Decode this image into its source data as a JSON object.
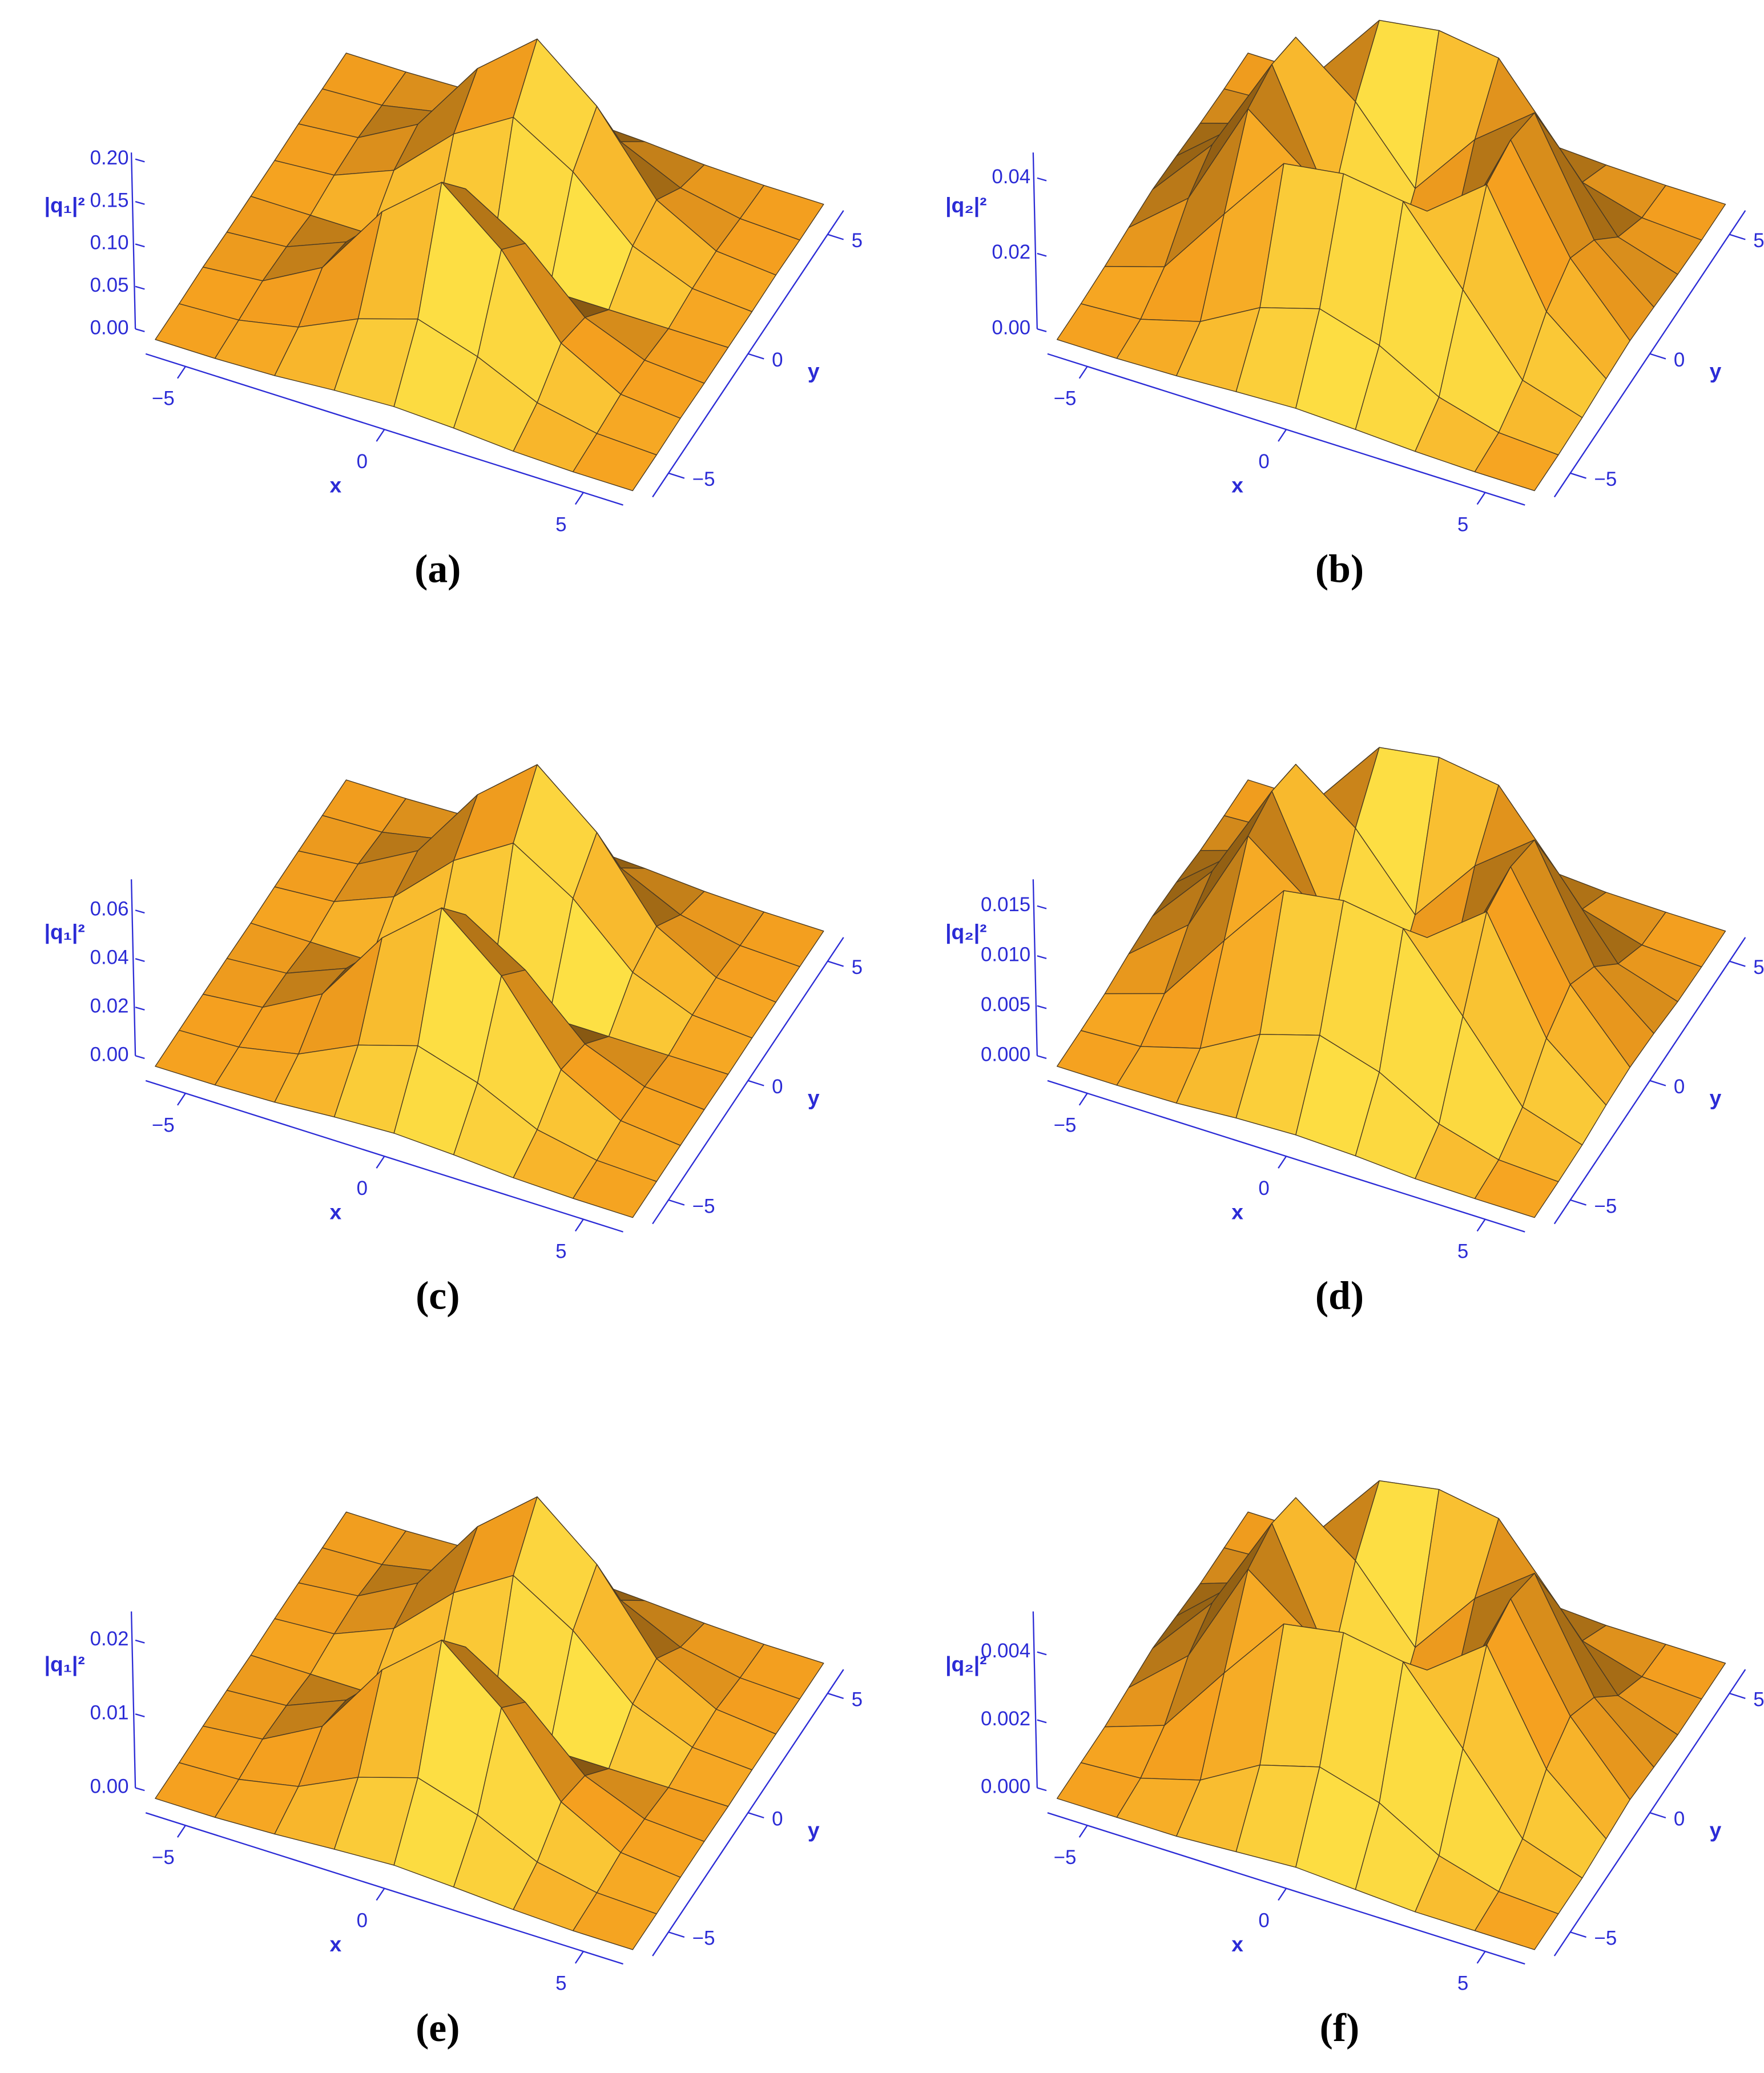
{
  "chart_data": [
    {
      "type": "surface",
      "caption": "(a)",
      "xlabel": "x",
      "ylabel": "y",
      "zlabel": "|q₁|²",
      "color": "#f5a01f",
      "axis_color": "#2b2bd6",
      "xlim": [
        -6,
        6
      ],
      "ylim": [
        -6,
        6
      ],
      "zlim": [
        0,
        0.2
      ],
      "xticks": [
        {
          "value": -5,
          "label": "−5"
        },
        0,
        5
      ],
      "yticks": [
        {
          "value": -5,
          "label": "−5"
        },
        0,
        5
      ],
      "zticks": [
        {
          "value": 0,
          "label": "0.00"
        },
        {
          "value": 0.05,
          "label": "0.05"
        },
        {
          "value": 0.1,
          "label": "0.10"
        },
        {
          "value": 0.15,
          "label": "0.15"
        },
        {
          "value": 0.2,
          "label": "0.20"
        }
      ],
      "x": [
        -6,
        -4.5,
        -3,
        -1.5,
        0,
        1.5,
        3,
        4.5,
        6
      ],
      "y": [
        -6,
        -4.5,
        -3,
        -1.5,
        0,
        1.5,
        3,
        4.5,
        6
      ],
      "z": [
        [
          0,
          0,
          0.002,
          0.007,
          0.01,
          0.007,
          0.002,
          0,
          0
        ],
        [
          0,
          0.003,
          0.017,
          0.049,
          0.071,
          0.049,
          0.017,
          0.003,
          0
        ],
        [
          0.001,
          0.007,
          0.045,
          0.133,
          0.19,
          0.133,
          0.045,
          0.007,
          0.001
        ],
        [
          0,
          0.005,
          0.033,
          0.098,
          0.14,
          0.098,
          0.033,
          0.005,
          0
        ],
        [
          0,
          0,
          0,
          0,
          0,
          0,
          0,
          0,
          0
        ],
        [
          0,
          0.005,
          0.033,
          0.098,
          0.14,
          0.098,
          0.033,
          0.005,
          0
        ],
        [
          0.001,
          0.007,
          0.045,
          0.133,
          0.19,
          0.133,
          0.045,
          0.007,
          0.001
        ],
        [
          0,
          0.003,
          0.017,
          0.049,
          0.071,
          0.049,
          0.017,
          0.003,
          0
        ],
        [
          0,
          0,
          0.002,
          0.007,
          0.01,
          0.007,
          0.002,
          0,
          0
        ]
      ]
    },
    {
      "type": "surface",
      "caption": "(b)",
      "xlabel": "x",
      "ylabel": "y",
      "zlabel": "|q₂|²",
      "color": "#f5a01f",
      "axis_color": "#2b2bd6",
      "xlim": [
        -6,
        6
      ],
      "ylim": [
        -6,
        6
      ],
      "zlim": [
        0,
        0.045
      ],
      "xticks": [
        {
          "value": -5,
          "label": "−5"
        },
        0,
        5
      ],
      "yticks": [
        {
          "value": -5,
          "label": "−5"
        },
        0,
        5
      ],
      "zticks": [
        {
          "value": 0,
          "label": "0.00"
        },
        {
          "value": 0.02,
          "label": "0.02"
        },
        {
          "value": 0.04,
          "label": "0.04"
        }
      ],
      "x": [
        -6,
        -4.5,
        -3,
        -1.5,
        0,
        1.5,
        3,
        4.5,
        6
      ],
      "y": [
        -6,
        -4.5,
        -3,
        -1.5,
        0,
        1.5,
        3,
        4.5,
        6
      ],
      "z": [
        [
          0,
          0,
          0.0004,
          0.0012,
          0.0018,
          0.0012,
          0.0004,
          0,
          0
        ],
        [
          0,
          0.0009,
          0.0053,
          0.014,
          0.0187,
          0.014,
          0.0053,
          0.0009,
          0
        ],
        [
          0.0004,
          0.0053,
          0.0243,
          0.0427,
          0.045,
          0.0427,
          0.0243,
          0.0053,
          0.0004
        ],
        [
          0.0012,
          0.014,
          0.0427,
          0.0306,
          0.0126,
          0.0306,
          0.0427,
          0.014,
          0.0012
        ],
        [
          0.0018,
          0.0187,
          0.045,
          0.0126,
          0,
          0.0126,
          0.045,
          0.0187,
          0.0018
        ],
        [
          0.0012,
          0.014,
          0.0427,
          0.0306,
          0.0126,
          0.0306,
          0.0427,
          0.014,
          0.0012
        ],
        [
          0.0004,
          0.0053,
          0.0243,
          0.0427,
          0.045,
          0.0427,
          0.0243,
          0.0053,
          0.0004
        ],
        [
          0,
          0.0009,
          0.0053,
          0.014,
          0.0187,
          0.014,
          0.0053,
          0.0009,
          0
        ],
        [
          0,
          0,
          0.0004,
          0.0012,
          0.0018,
          0.0012,
          0.0004,
          0,
          0
        ]
      ]
    },
    {
      "type": "surface",
      "caption": "(c)",
      "xlabel": "x",
      "ylabel": "y",
      "zlabel": "|q₁|²",
      "color": "#f5a01f",
      "axis_color": "#2b2bd6",
      "xlim": [
        -6,
        6
      ],
      "ylim": [
        -6,
        6
      ],
      "zlim": [
        0,
        0.07
      ],
      "xticks": [
        {
          "value": -5,
          "label": "−5"
        },
        0,
        5
      ],
      "yticks": [
        {
          "value": -5,
          "label": "−5"
        },
        0,
        5
      ],
      "zticks": [
        {
          "value": 0,
          "label": "0.00"
        },
        {
          "value": 0.02,
          "label": "0.02"
        },
        {
          "value": 0.04,
          "label": "0.04"
        },
        {
          "value": 0.06,
          "label": "0.06"
        }
      ],
      "x": [
        -6,
        -4.5,
        -3,
        -1.5,
        0,
        1.5,
        3,
        4.5,
        6
      ],
      "y": [
        -6,
        -4.5,
        -3,
        -1.5,
        0,
        1.5,
        3,
        4.5,
        6
      ],
      "z": [
        [
          0,
          0.0001,
          0.0008,
          0.0025,
          0.0036,
          0.0025,
          0.0008,
          0.0001,
          0
        ],
        [
          0.0001,
          0.001,
          0.0059,
          0.0174,
          0.0249,
          0.0174,
          0.0059,
          0.001,
          0.0001
        ],
        [
          0.0002,
          0.0026,
          0.0159,
          0.0468,
          0.067,
          0.0468,
          0.0159,
          0.0026,
          0.0002
        ],
        [
          0.0002,
          0.0019,
          0.0117,
          0.0344,
          0.0494,
          0.0344,
          0.0117,
          0.0019,
          0.0002
        ],
        [
          0,
          0,
          0,
          0,
          0,
          0,
          0,
          0,
          0
        ],
        [
          0.0002,
          0.0019,
          0.0117,
          0.0344,
          0.0494,
          0.0344,
          0.0117,
          0.0019,
          0.0002
        ],
        [
          0.0002,
          0.0026,
          0.0159,
          0.0468,
          0.067,
          0.0468,
          0.0159,
          0.0026,
          0.0002
        ],
        [
          0.0001,
          0.001,
          0.0059,
          0.0174,
          0.0249,
          0.0174,
          0.0059,
          0.001,
          0.0001
        ],
        [
          0,
          0.0001,
          0.0008,
          0.0025,
          0.0036,
          0.0025,
          0.0008,
          0.0001,
          0
        ]
      ]
    },
    {
      "type": "surface",
      "caption": "(d)",
      "xlabel": "x",
      "ylabel": "y",
      "zlabel": "|q₂|²",
      "color": "#f5a01f",
      "axis_color": "#2b2bd6",
      "xlim": [
        -6,
        6
      ],
      "ylim": [
        -6,
        6
      ],
      "zlim": [
        0,
        0.017
      ],
      "xticks": [
        {
          "value": -5,
          "label": "−5"
        },
        0,
        5
      ],
      "yticks": [
        {
          "value": -5,
          "label": "−5"
        },
        0,
        5
      ],
      "zticks": [
        {
          "value": 0,
          "label": "0.000"
        },
        {
          "value": 0.005,
          "label": "0.005"
        },
        {
          "value": 0.01,
          "label": "0.010"
        },
        {
          "value": 0.015,
          "label": "0.015"
        }
      ],
      "x": [
        -6,
        -4.5,
        -3,
        -1.5,
        0,
        1.5,
        3,
        4.5,
        6
      ],
      "y": [
        -6,
        -4.5,
        -3,
        -1.5,
        0,
        1.5,
        3,
        4.5,
        6
      ],
      "z": [
        [
          0,
          0,
          0.0001,
          0.0005,
          0.0007,
          0.0005,
          0.0001,
          0,
          0
        ],
        [
          0,
          0.0003,
          0.002,
          0.0053,
          0.0071,
          0.0053,
          0.002,
          0.0003,
          0
        ],
        [
          0.0001,
          0.002,
          0.0092,
          0.0161,
          0.017,
          0.0161,
          0.0092,
          0.002,
          0.0001
        ],
        [
          0.0005,
          0.0053,
          0.0161,
          0.0116,
          0.0048,
          0.0116,
          0.0161,
          0.0053,
          0.0005
        ],
        [
          0.0007,
          0.0071,
          0.017,
          0.0048,
          0,
          0.0048,
          0.017,
          0.0071,
          0.0007
        ],
        [
          0.0005,
          0.0053,
          0.0161,
          0.0116,
          0.0048,
          0.0116,
          0.0161,
          0.0053,
          0.0005
        ],
        [
          0.0001,
          0.002,
          0.0092,
          0.0161,
          0.017,
          0.0161,
          0.0092,
          0.002,
          0.0001
        ],
        [
          0,
          0.0003,
          0.002,
          0.0053,
          0.0071,
          0.0053,
          0.002,
          0.0003,
          0
        ],
        [
          0,
          0,
          0.0001,
          0.0005,
          0.0007,
          0.0005,
          0.0001,
          0,
          0
        ]
      ]
    },
    {
      "type": "surface",
      "caption": "(e)",
      "xlabel": "x",
      "ylabel": "y",
      "zlabel": "|q₁|²",
      "color": "#f5a01f",
      "axis_color": "#2b2bd6",
      "xlim": [
        -6,
        6
      ],
      "ylim": [
        -6,
        6
      ],
      "zlim": [
        0,
        0.023
      ],
      "xticks": [
        {
          "value": -5,
          "label": "−5"
        },
        0,
        5
      ],
      "yticks": [
        {
          "value": -5,
          "label": "−5"
        },
        0,
        5
      ],
      "zticks": [
        {
          "value": 0,
          "label": "0.00"
        },
        {
          "value": 0.01,
          "label": "0.01"
        },
        {
          "value": 0.02,
          "label": "0.02"
        }
      ],
      "x": [
        -6,
        -4.5,
        -3,
        -1.5,
        0,
        1.5,
        3,
        4.5,
        6
      ],
      "y": [
        -6,
        -4.5,
        -3,
        -1.5,
        0,
        1.5,
        3,
        4.5,
        6
      ],
      "z": [
        [
          0,
          0,
          0.0003,
          0.0008,
          0.0012,
          0.0008,
          0.0003,
          0,
          0
        ],
        [
          0,
          0.0003,
          0.0019,
          0.0057,
          0.0082,
          0.0057,
          0.0019,
          0.0003,
          0
        ],
        [
          0.0001,
          0.0009,
          0.0052,
          0.0154,
          0.022,
          0.0154,
          0.0052,
          0.0009,
          0.0001
        ],
        [
          0.0001,
          0.0006,
          0.0039,
          0.0113,
          0.0162,
          0.0113,
          0.0039,
          0.0006,
          0.0001
        ],
        [
          0,
          0,
          0,
          0,
          0,
          0,
          0,
          0,
          0
        ],
        [
          0.0001,
          0.0006,
          0.0039,
          0.0113,
          0.0162,
          0.0113,
          0.0039,
          0.0006,
          0.0001
        ],
        [
          0.0001,
          0.0009,
          0.0052,
          0.0154,
          0.022,
          0.0154,
          0.0052,
          0.0009,
          0.0001
        ],
        [
          0,
          0.0003,
          0.0019,
          0.0057,
          0.0082,
          0.0057,
          0.0019,
          0.0003,
          0
        ],
        [
          0,
          0,
          0.0003,
          0.0008,
          0.0012,
          0.0008,
          0.0003,
          0,
          0
        ]
      ]
    },
    {
      "type": "surface",
      "caption": "(f)",
      "xlabel": "x",
      "ylabel": "y",
      "zlabel": "|q₂|²",
      "color": "#f5a01f",
      "axis_color": "#2b2bd6",
      "xlim": [
        -6,
        6
      ],
      "ylim": [
        -6,
        6
      ],
      "zlim": [
        0,
        0.005
      ],
      "xticks": [
        {
          "value": -5,
          "label": "−5"
        },
        0,
        5
      ],
      "yticks": [
        {
          "value": -5,
          "label": "−5"
        },
        0,
        5
      ],
      "zticks": [
        {
          "value": 0,
          "label": "0.000"
        },
        {
          "value": 0.002,
          "label": "0.002"
        },
        {
          "value": 0.004,
          "label": "0.004"
        }
      ],
      "x": [
        -6,
        -4.5,
        -3,
        -1.5,
        0,
        1.5,
        3,
        4.5,
        6
      ],
      "y": [
        -6,
        -4.5,
        -3,
        -1.5,
        0,
        1.5,
        3,
        4.5,
        6
      ],
      "z": [
        [
          0,
          0,
          0,
          0.0001,
          0.0002,
          0.0001,
          0,
          0,
          0
        ],
        [
          0,
          0.0001,
          0.0006,
          0.0016,
          0.0021,
          0.0016,
          0.0006,
          0.0001,
          0
        ],
        [
          0,
          0.0006,
          0.0027,
          0.0047,
          0.005,
          0.0047,
          0.0027,
          0.0006,
          0
        ],
        [
          0.0001,
          0.0016,
          0.0047,
          0.0034,
          0.0014,
          0.0034,
          0.0047,
          0.0016,
          0.0001
        ],
        [
          0.0002,
          0.0021,
          0.005,
          0.0014,
          0,
          0.0014,
          0.005,
          0.0021,
          0.0002
        ],
        [
          0.0001,
          0.0016,
          0.0047,
          0.0034,
          0.0014,
          0.0034,
          0.0047,
          0.0016,
          0.0001
        ],
        [
          0,
          0.0006,
          0.0027,
          0.0047,
          0.005,
          0.0047,
          0.0027,
          0.0006,
          0
        ],
        [
          0,
          0.0001,
          0.0006,
          0.0016,
          0.0021,
          0.0016,
          0.0006,
          0.0001,
          0
        ],
        [
          0,
          0,
          0,
          0.0001,
          0.0002,
          0.0001,
          0,
          0,
          0
        ]
      ]
    }
  ]
}
